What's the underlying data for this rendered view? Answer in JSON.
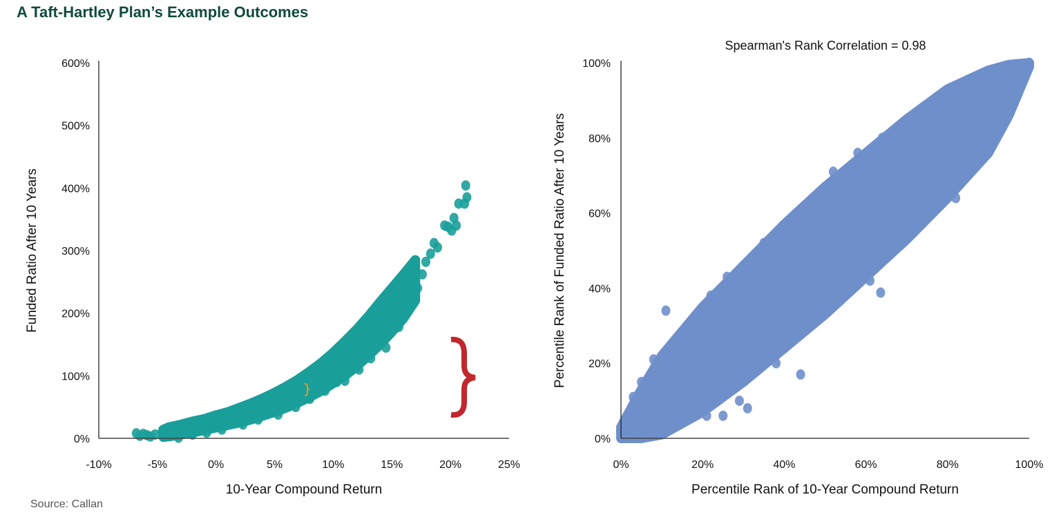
{
  "title": "A Taft-Hartley Plan’s Example Outcomes",
  "source": "Source: Callan",
  "chart_data": [
    {
      "type": "scatter",
      "title": "",
      "xlabel": "10-Year Compound Return",
      "ylabel": "Funded Ratio After 10 Years",
      "xlim": [
        -10,
        25
      ],
      "ylim": [
        0,
        600
      ],
      "x_ticks": [
        "-10%",
        "-5%",
        "0%",
        "5%",
        "10%",
        "15%",
        "20%",
        "25%"
      ],
      "x_tick_values": [
        -10,
        -5,
        0,
        5,
        10,
        15,
        20,
        25
      ],
      "y_ticks": [
        "0%",
        "100%",
        "200%",
        "300%",
        "400%",
        "500%",
        "600%"
      ],
      "y_tick_values": [
        0,
        100,
        200,
        300,
        400,
        500,
        600
      ],
      "grid": false,
      "color": "#1a9e9a",
      "annotation_color": "#c1272d",
      "highlight_color": "#f39c12",
      "envelope": {
        "x": [
          -4.5,
          -4,
          -3,
          -2,
          -1,
          0,
          1,
          2,
          3,
          4,
          5,
          6,
          7,
          8,
          9,
          10,
          11,
          12,
          13,
          14,
          15,
          16,
          17
        ],
        "lower": [
          2,
          3,
          6,
          9,
          13,
          17,
          21,
          25,
          30,
          36,
          42,
          49,
          57,
          66,
          76,
          88,
          100,
          115,
          132,
          150,
          170,
          192,
          220
        ],
        "upper": [
          14,
          18,
          22,
          27,
          31,
          37,
          42,
          49,
          56,
          64,
          73,
          83,
          94,
          107,
          121,
          137,
          155,
          174,
          195,
          218,
          240,
          262,
          285
        ]
      },
      "points": [
        [
          -6.8,
          8
        ],
        [
          -6.5,
          4
        ],
        [
          -6.2,
          7
        ],
        [
          -5.9,
          5
        ],
        [
          -5.6,
          3
        ],
        [
          -5.2,
          6
        ],
        [
          -4.6,
          10
        ],
        [
          -4.3,
          4
        ],
        [
          -3.8,
          14
        ],
        [
          -3.2,
          1
        ],
        [
          -2.7,
          18
        ],
        [
          -2,
          6
        ],
        [
          -1.2,
          27
        ],
        [
          -0.8,
          9
        ],
        [
          0.1,
          33
        ],
        [
          0.5,
          14
        ],
        [
          1.5,
          40
        ],
        [
          2.3,
          22
        ],
        [
          3.2,
          52
        ],
        [
          3.6,
          30
        ],
        [
          4.5,
          62
        ],
        [
          5.3,
          38
        ],
        [
          6.2,
          80
        ],
        [
          6.8,
          50
        ],
        [
          7.5,
          88
        ],
        [
          8,
          63
        ],
        [
          8.7,
          104
        ],
        [
          9.3,
          76
        ],
        [
          10,
          130
        ],
        [
          10.3,
          90
        ],
        [
          11,
          92
        ],
        [
          11.4,
          150
        ],
        [
          12.2,
          110
        ],
        [
          12.8,
          175
        ],
        [
          13.2,
          128
        ],
        [
          14,
          200
        ],
        [
          14.5,
          145
        ],
        [
          15.2,
          225
        ],
        [
          15.6,
          178
        ],
        [
          16.2,
          250
        ],
        [
          16.8,
          270
        ],
        [
          17.2,
          240
        ],
        [
          17.6,
          262
        ],
        [
          17.9,
          282
        ],
        [
          18.3,
          295
        ],
        [
          18.6,
          312
        ],
        [
          18.9,
          305
        ],
        [
          19.5,
          340
        ],
        [
          19.8,
          338
        ],
        [
          20.1,
          332
        ],
        [
          20.5,
          340
        ],
        [
          20.3,
          352
        ],
        [
          20.7,
          375
        ],
        [
          21.2,
          375
        ],
        [
          21.4,
          385
        ],
        [
          21.3,
          404
        ]
      ]
    },
    {
      "type": "scatter",
      "title": "Spearman's Rank Correlation = 0.98",
      "xlabel": "Percentile Rank of 10-Year Compound Return",
      "ylabel": "Percentile Rank of Funded Ratio After 10 Years",
      "xlim": [
        0,
        100
      ],
      "ylim": [
        0,
        100
      ],
      "x_ticks": [
        "0%",
        "20%",
        "40%",
        "60%",
        "80%",
        "100%"
      ],
      "x_tick_values": [
        0,
        20,
        40,
        60,
        80,
        100
      ],
      "y_ticks": [
        "0%",
        "20%",
        "40%",
        "60%",
        "80%",
        "100%"
      ],
      "y_tick_values": [
        0,
        20,
        40,
        60,
        80,
        100
      ],
      "grid": false,
      "color": "#6f8fcb",
      "envelope": {
        "x": [
          0,
          5,
          10,
          20,
          30,
          40,
          50,
          60,
          70,
          80,
          90,
          95,
          100
        ],
        "lower": [
          0,
          0,
          1,
          7,
          15,
          24,
          33,
          43,
          53,
          64,
          76,
          86,
          99
        ],
        "upper": [
          3,
          13,
          22,
          35,
          46,
          57,
          67,
          76,
          85,
          93,
          98,
          99.5,
          100
        ]
      },
      "points": [
        [
          0.5,
          0.5
        ],
        [
          2,
          4
        ],
        [
          3,
          11
        ],
        [
          5,
          15
        ],
        [
          8,
          21
        ],
        [
          11,
          34
        ],
        [
          12,
          8
        ],
        [
          15,
          28
        ],
        [
          18,
          30
        ],
        [
          21,
          6
        ],
        [
          22,
          38
        ],
        [
          25,
          6
        ],
        [
          26,
          43
        ],
        [
          29,
          10
        ],
        [
          31,
          8
        ],
        [
          33,
          40
        ],
        [
          35,
          52
        ],
        [
          38,
          20
        ],
        [
          40,
          24
        ],
        [
          42,
          58
        ],
        [
          44,
          17
        ],
        [
          45,
          30
        ],
        [
          47,
          64
        ],
        [
          50,
          40
        ],
        [
          52,
          71
        ],
        [
          54,
          45
        ],
        [
          56,
          48
        ],
        [
          58,
          76
        ],
        [
          60,
          55
        ],
        [
          61,
          42
        ],
        [
          63.6,
          38.8
        ],
        [
          64,
          80
        ],
        [
          66,
          60
        ],
        [
          68,
          82
        ],
        [
          70,
          70
        ],
        [
          72,
          86
        ],
        [
          74,
          74
        ],
        [
          76,
          88
        ],
        [
          78,
          80
        ],
        [
          79,
          89
        ],
        [
          82,
          64
        ],
        [
          84,
          92
        ],
        [
          86,
          86
        ],
        [
          88,
          95
        ],
        [
          90,
          90
        ],
        [
          92,
          97
        ],
        [
          94,
          93
        ],
        [
          96,
          98
        ],
        [
          98,
          99
        ],
        [
          100,
          100
        ]
      ]
    }
  ]
}
